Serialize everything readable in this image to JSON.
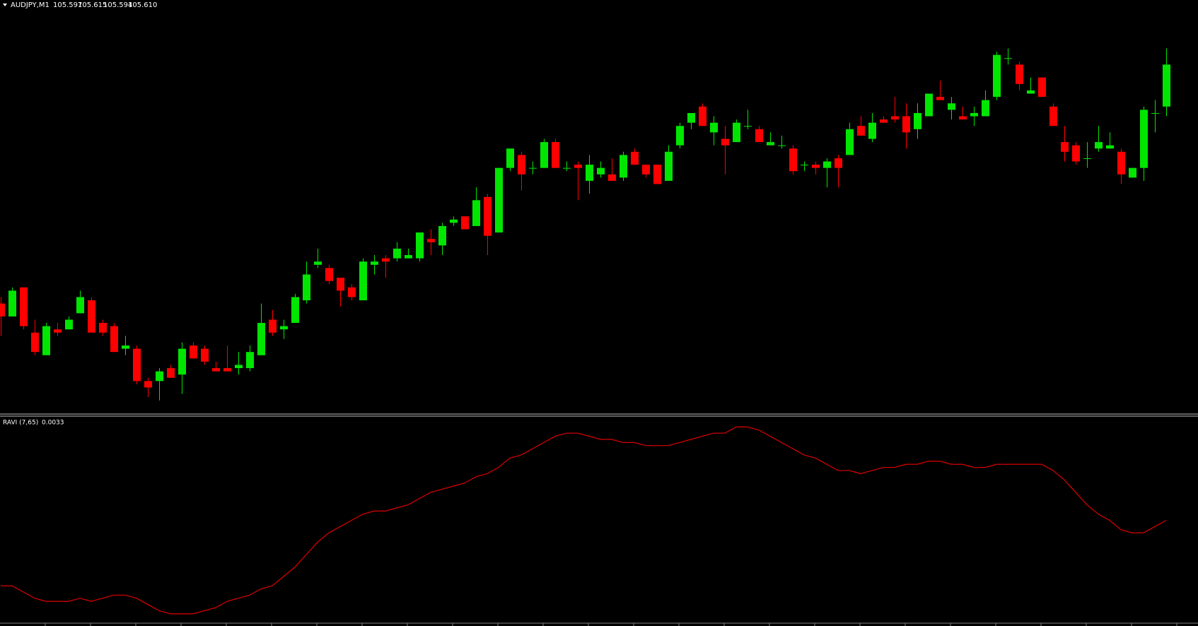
{
  "chart_data": [
    {
      "type": "candlestick",
      "title": "AUDJPY,M1",
      "quote": [
        "105.597",
        "105.615",
        "105.594",
        "105.610"
      ],
      "up_color": "#00e600",
      "down_color": "#ff0000",
      "ylim": [
        105.502,
        105.63
      ],
      "open": [
        105.536,
        105.532,
        105.541,
        105.527,
        105.52,
        105.528,
        105.528,
        105.533,
        105.537,
        105.53,
        105.529,
        105.522,
        105.522,
        105.512,
        105.512,
        105.516,
        105.514,
        105.523,
        105.522,
        105.516,
        105.516,
        105.516,
        105.516,
        105.52,
        105.531,
        105.528,
        105.53,
        105.537,
        105.548,
        105.547,
        105.544,
        105.541,
        105.537,
        105.548,
        105.55,
        105.55,
        105.55,
        105.55,
        105.556,
        105.554,
        105.561,
        105.563,
        105.56,
        105.569,
        105.558,
        105.578,
        105.582,
        105.578,
        105.578,
        105.586,
        105.578,
        105.579,
        105.574,
        105.576,
        105.576,
        105.575,
        105.583,
        105.579,
        105.579,
        105.574,
        105.585,
        105.592,
        105.597,
        105.589,
        105.587,
        105.586,
        105.591,
        105.59,
        105.585,
        105.585,
        105.584,
        105.579,
        105.579,
        105.578,
        105.581,
        105.582,
        105.591,
        105.587,
        105.593,
        105.594,
        105.594,
        105.59,
        105.594,
        105.6,
        105.596,
        105.594,
        105.594,
        105.594,
        105.6,
        105.612,
        105.61,
        105.601,
        105.606,
        105.597,
        105.586,
        105.585,
        105.581,
        105.584,
        105.584,
        105.583,
        105.575,
        105.578,
        105.595,
        105.597
      ],
      "high": [
        105.538,
        105.541,
        105.541,
        105.531,
        105.53,
        105.53,
        105.532,
        105.54,
        105.538,
        105.531,
        105.53,
        105.526,
        105.523,
        105.513,
        105.516,
        105.517,
        105.524,
        105.524,
        105.523,
        105.518,
        105.523,
        105.521,
        105.523,
        105.536,
        105.534,
        105.531,
        105.539,
        105.549,
        105.553,
        105.548,
        105.544,
        105.542,
        105.55,
        105.551,
        105.551,
        105.555,
        105.553,
        105.558,
        105.559,
        105.561,
        105.563,
        105.563,
        105.572,
        105.57,
        105.578,
        105.584,
        105.583,
        105.58,
        105.587,
        105.587,
        105.58,
        105.58,
        105.582,
        105.58,
        105.581,
        105.583,
        105.584,
        105.579,
        105.579,
        105.585,
        105.592,
        105.595,
        105.598,
        105.594,
        105.591,
        105.593,
        105.596,
        105.591,
        105.589,
        105.588,
        105.585,
        105.58,
        105.58,
        105.581,
        105.582,
        105.592,
        105.594,
        105.595,
        105.594,
        105.6,
        105.598,
        105.598,
        105.601,
        105.605,
        105.6,
        105.597,
        105.597,
        105.602,
        105.614,
        105.615,
        105.611,
        105.606,
        105.606,
        105.598,
        105.591,
        105.586,
        105.586,
        105.591,
        105.589,
        105.584,
        105.578,
        105.597,
        105.599,
        105.615
      ],
      "low": [
        105.526,
        105.532,
        105.528,
        105.52,
        105.52,
        105.526,
        105.528,
        105.533,
        105.527,
        105.526,
        105.521,
        105.52,
        105.511,
        105.507,
        105.506,
        105.513,
        105.508,
        105.519,
        105.517,
        105.515,
        105.515,
        105.514,
        105.515,
        105.52,
        105.526,
        105.525,
        105.53,
        105.536,
        105.547,
        105.542,
        105.535,
        105.537,
        105.537,
        105.545,
        105.544,
        105.549,
        105.55,
        105.549,
        105.551,
        105.551,
        105.56,
        105.559,
        105.56,
        105.551,
        105.558,
        105.577,
        105.571,
        105.576,
        105.578,
        105.578,
        105.577,
        105.568,
        105.57,
        105.575,
        105.574,
        105.574,
        105.579,
        105.575,
        105.573,
        105.574,
        105.584,
        105.59,
        105.591,
        105.585,
        105.576,
        105.586,
        105.59,
        105.586,
        105.585,
        105.584,
        105.576,
        105.577,
        105.576,
        105.572,
        105.572,
        105.582,
        105.588,
        105.586,
        105.592,
        105.592,
        105.584,
        105.587,
        105.594,
        105.599,
        105.593,
        105.593,
        105.591,
        105.594,
        105.599,
        105.61,
        105.602,
        105.601,
        105.6,
        105.591,
        105.58,
        105.579,
        105.578,
        105.583,
        105.584,
        105.573,
        105.575,
        105.574,
        105.589,
        105.594
      ],
      "close": [
        105.532,
        105.54,
        105.529,
        105.521,
        105.529,
        105.527,
        105.531,
        105.538,
        105.527,
        105.527,
        105.521,
        105.523,
        105.512,
        105.51,
        105.515,
        105.513,
        105.522,
        105.519,
        105.518,
        105.515,
        105.515,
        105.517,
        105.521,
        105.53,
        105.527,
        105.529,
        105.538,
        105.545,
        105.549,
        105.543,
        105.54,
        105.538,
        105.549,
        105.549,
        105.549,
        105.553,
        105.551,
        105.558,
        105.555,
        105.56,
        105.562,
        105.559,
        105.568,
        105.557,
        105.578,
        105.584,
        105.576,
        105.578,
        105.586,
        105.578,
        105.578,
        105.578,
        105.579,
        105.578,
        105.574,
        105.582,
        105.579,
        105.576,
        105.573,
        105.583,
        105.591,
        105.595,
        105.591,
        105.592,
        105.585,
        105.592,
        105.591,
        105.586,
        105.586,
        105.585,
        105.577,
        105.579,
        105.578,
        105.58,
        105.578,
        105.59,
        105.588,
        105.592,
        105.592,
        105.593,
        105.589,
        105.595,
        105.601,
        105.599,
        105.598,
        105.593,
        105.595,
        105.599,
        105.613,
        105.612,
        105.604,
        105.602,
        105.6,
        105.591,
        105.583,
        105.58,
        105.581,
        105.586,
        105.585,
        105.576,
        105.578,
        105.596,
        105.595,
        105.61
      ]
    },
    {
      "type": "line",
      "title": "RAVI (7,65)",
      "current": "0.0033",
      "color": "#e00000",
      "ylim": [
        0,
        0.0066
      ],
      "values": [
        0.0012,
        0.0012,
        0.001,
        0.0008,
        0.0007,
        0.0007,
        0.0007,
        0.0008,
        0.0007,
        0.0008,
        0.0009,
        0.0009,
        0.0008,
        0.0006,
        0.0004,
        0.0003,
        0.0003,
        0.0003,
        0.0004,
        0.0005,
        0.0007,
        0.0008,
        0.0009,
        0.0011,
        0.0012,
        0.0015,
        0.0018,
        0.0022,
        0.0026,
        0.0029,
        0.0031,
        0.0033,
        0.0035,
        0.0036,
        0.0036,
        0.0037,
        0.0038,
        0.004,
        0.0042,
        0.0043,
        0.0044,
        0.0045,
        0.0047,
        0.0048,
        0.005,
        0.0053,
        0.0054,
        0.0056,
        0.0058,
        0.006,
        0.0061,
        0.0061,
        0.006,
        0.0059,
        0.0059,
        0.0058,
        0.0058,
        0.0057,
        0.0057,
        0.0057,
        0.0058,
        0.0059,
        0.006,
        0.0061,
        0.0061,
        0.0063,
        0.0063,
        0.0062,
        0.006,
        0.0058,
        0.0056,
        0.0054,
        0.0053,
        0.0051,
        0.0049,
        0.0049,
        0.0048,
        0.0049,
        0.005,
        0.005,
        0.0051,
        0.0051,
        0.0052,
        0.0052,
        0.0051,
        0.0051,
        0.005,
        0.005,
        0.0051,
        0.0051,
        0.0051,
        0.0051,
        0.0051,
        0.0049,
        0.0046,
        0.0042,
        0.0038,
        0.0035,
        0.0033,
        0.003,
        0.0029,
        0.0029,
        0.0031,
        0.0033
      ]
    }
  ]
}
